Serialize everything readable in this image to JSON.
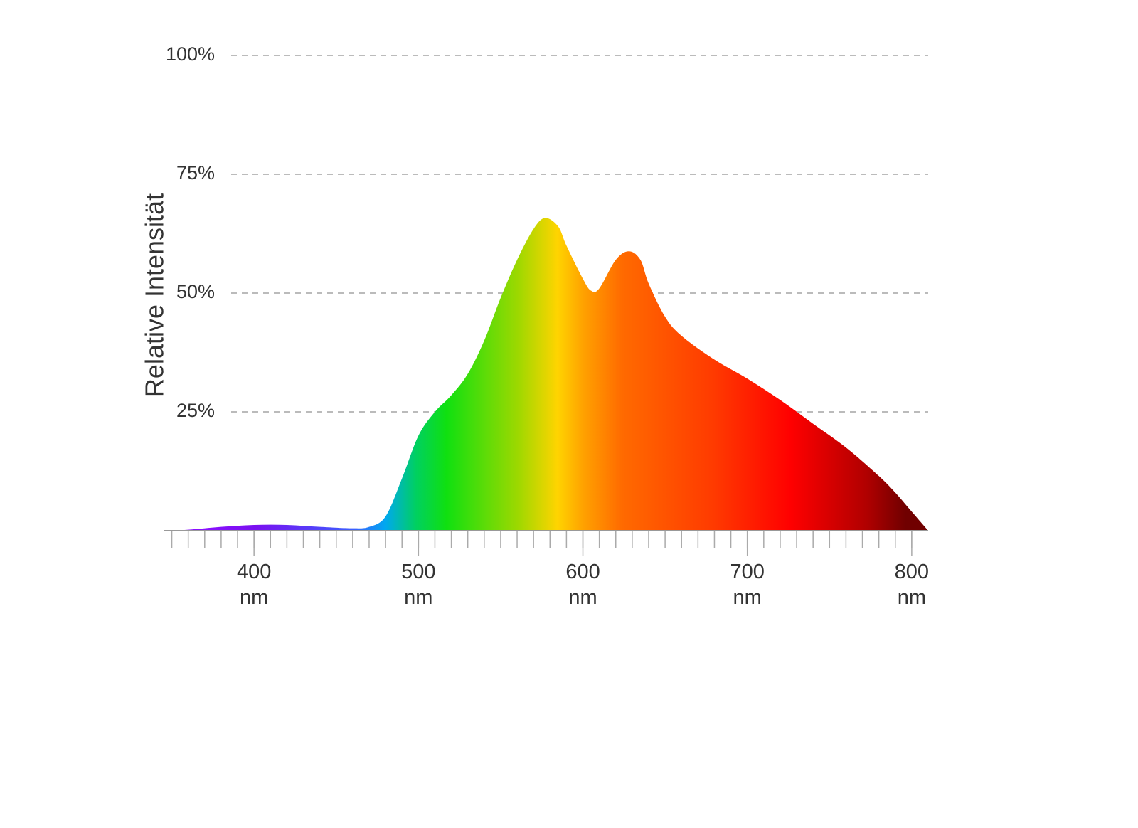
{
  "chart_data": {
    "type": "area",
    "y_label": "Relative Intensität",
    "x": [
      345,
      360,
      380,
      400,
      420,
      440,
      460,
      470,
      480,
      490,
      500,
      510,
      520,
      530,
      540,
      550,
      560,
      570,
      577,
      585,
      590,
      600,
      605,
      610,
      620,
      628,
      635,
      640,
      650,
      660,
      680,
      700,
      720,
      740,
      760,
      780,
      790,
      800,
      810
    ],
    "values": [
      0,
      0.2,
      0.8,
      1.2,
      1.2,
      0.8,
      0.5,
      0.8,
      3,
      11,
      20,
      25,
      28.5,
      33,
      40,
      49,
      57,
      63.5,
      65.8,
      64,
      60,
      53,
      50.5,
      51,
      57,
      58.8,
      57,
      52,
      45,
      41,
      36,
      32,
      27.5,
      22.5,
      17.5,
      11.5,
      8,
      4,
      0
    ],
    "xlim": [
      345,
      810
    ],
    "ylim": [
      0,
      100
    ],
    "xticks": [
      {
        "value": 400,
        "label": "400 nm"
      },
      {
        "value": 500,
        "label": "500 nm"
      },
      {
        "value": 600,
        "label": "600 nm"
      },
      {
        "value": 700,
        "label": "700 nm"
      },
      {
        "value": 800,
        "label": "800 nm"
      }
    ],
    "xminor_ticks": [
      350,
      360,
      370,
      380,
      390,
      400,
      410,
      420,
      430,
      440,
      450,
      460,
      470,
      480,
      490,
      500,
      510,
      520,
      530,
      540,
      550,
      560,
      570,
      580,
      590,
      600,
      610,
      620,
      630,
      640,
      650,
      660,
      670,
      680,
      690,
      700,
      710,
      720,
      730,
      740,
      750,
      760,
      770,
      780,
      790,
      800
    ],
    "yticks": [
      {
        "value": 25,
        "label": "25%"
      },
      {
        "value": 50,
        "label": "50%"
      },
      {
        "value": 75,
        "label": "75%"
      },
      {
        "value": 100,
        "label": "100%"
      }
    ],
    "grid": true
  }
}
